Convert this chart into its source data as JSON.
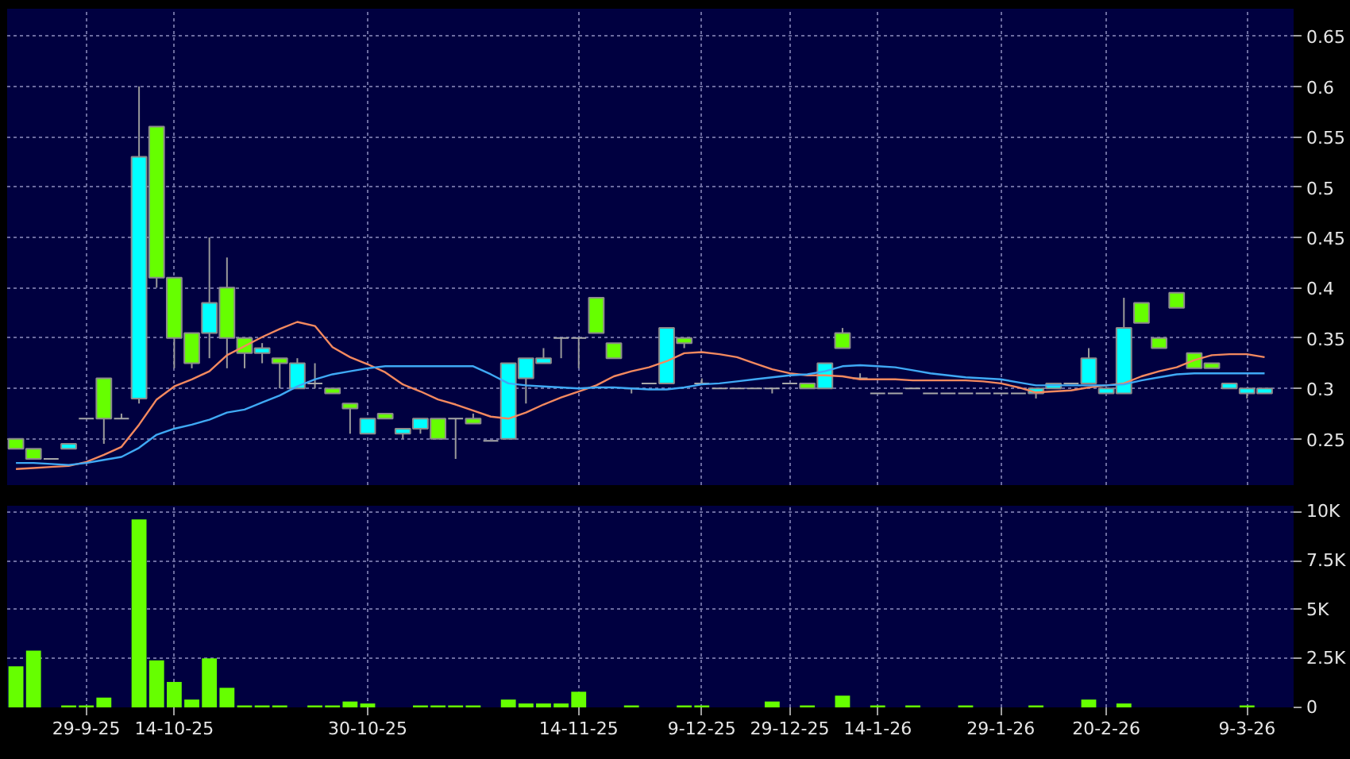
{
  "chart_data": [
    {
      "type": "candlestick",
      "categories": [
        null,
        null,
        null,
        null,
        null,
        null,
        null,
        null,
        null,
        null,
        null,
        null,
        null,
        null,
        null,
        null,
        null,
        null,
        null,
        null,
        null,
        null,
        null,
        null,
        null,
        null,
        null,
        null,
        null,
        null,
        null,
        null,
        null,
        null,
        null,
        null,
        null,
        null,
        null,
        null,
        null,
        null,
        null,
        null,
        null,
        null,
        null,
        null,
        null,
        null,
        null,
        null,
        null,
        null,
        null,
        null,
        null,
        null,
        null,
        null,
        null,
        null,
        null,
        null,
        null,
        null,
        null,
        null,
        null,
        null,
        null,
        null
      ],
      "ohlc": [
        [
          0.25,
          0.25,
          0.24,
          0.24
        ],
        [
          0.24,
          0.24,
          0.23,
          0.23
        ],
        [
          0.23,
          0.23,
          0.23,
          0.23
        ],
        [
          0.24,
          0.245,
          0.24,
          0.245
        ],
        [
          0.27,
          0.27,
          0.27,
          0.27
        ],
        [
          0.31,
          0.31,
          0.245,
          0.27
        ],
        [
          0.27,
          0.275,
          0.27,
          0.27
        ],
        [
          0.29,
          0.6,
          0.285,
          0.53
        ],
        [
          0.56,
          0.56,
          0.4,
          0.41
        ],
        [
          0.41,
          0.41,
          0.32,
          0.35
        ],
        [
          0.355,
          0.355,
          0.32,
          0.325
        ],
        [
          0.355,
          0.45,
          0.33,
          0.385
        ],
        [
          0.4,
          0.43,
          0.32,
          0.35
        ],
        [
          0.35,
          0.35,
          0.32,
          0.335
        ],
        [
          0.335,
          0.345,
          0.325,
          0.34
        ],
        [
          0.33,
          0.33,
          0.3,
          0.325
        ],
        [
          0.3,
          0.33,
          0.3,
          0.325
        ],
        [
          0.305,
          0.325,
          0.3,
          0.305
        ],
        [
          0.3,
          0.3,
          0.295,
          0.295
        ],
        [
          0.285,
          0.285,
          0.255,
          0.28
        ],
        [
          0.255,
          0.27,
          0.255,
          0.27
        ],
        [
          0.275,
          0.275,
          0.27,
          0.27
        ],
        [
          0.255,
          0.26,
          0.25,
          0.26
        ],
        [
          0.26,
          0.27,
          0.255,
          0.27
        ],
        [
          0.27,
          0.27,
          0.25,
          0.25
        ],
        [
          0.27,
          0.27,
          0.23,
          0.27
        ],
        [
          0.27,
          0.275,
          0.265,
          0.265
        ],
        [
          0.248,
          0.248,
          0.248,
          0.248
        ],
        [
          0.25,
          0.325,
          0.25,
          0.325
        ],
        [
          0.31,
          0.33,
          0.285,
          0.33
        ],
        [
          0.325,
          0.34,
          0.325,
          0.33
        ],
        [
          0.35,
          0.35,
          0.33,
          0.35
        ],
        [
          0.35,
          0.35,
          0.32,
          0.35
        ],
        [
          0.39,
          0.39,
          0.355,
          0.355
        ],
        [
          0.345,
          0.345,
          0.33,
          0.33
        ],
        [
          0.3,
          0.3,
          0.295,
          0.3
        ],
        [
          0.305,
          0.305,
          0.305,
          0.305
        ],
        [
          0.305,
          0.36,
          0.305,
          0.36
        ],
        [
          0.35,
          0.35,
          0.34,
          0.345
        ],
        [
          0.305,
          0.31,
          0.305,
          0.305
        ],
        [
          0.3,
          0.3,
          0.3,
          0.3
        ],
        [
          0.3,
          0.3,
          0.3,
          0.3
        ],
        [
          0.3,
          0.3,
          0.3,
          0.3
        ],
        [
          0.3,
          0.3,
          0.295,
          0.3
        ],
        [
          0.305,
          0.305,
          0.305,
          0.305
        ],
        [
          0.305,
          0.305,
          0.3,
          0.3
        ],
        [
          0.3,
          0.325,
          0.3,
          0.325
        ],
        [
          0.355,
          0.36,
          0.34,
          0.34
        ],
        [
          0.31,
          0.315,
          0.31,
          0.31
        ],
        [
          0.295,
          0.295,
          0.295,
          0.295
        ],
        [
          0.295,
          0.295,
          0.295,
          0.295
        ],
        [
          0.3,
          0.3,
          0.3,
          0.3
        ],
        [
          0.295,
          0.295,
          0.295,
          0.295
        ],
        [
          0.295,
          0.295,
          0.295,
          0.295
        ],
        [
          0.295,
          0.295,
          0.295,
          0.295
        ],
        [
          0.295,
          0.295,
          0.295,
          0.295
        ],
        [
          0.295,
          0.295,
          0.295,
          0.295
        ],
        [
          0.295,
          0.295,
          0.295,
          0.295
        ],
        [
          0.295,
          0.3,
          0.29,
          0.3
        ],
        [
          0.3,
          0.305,
          0.3,
          0.305
        ],
        [
          0.305,
          0.305,
          0.305,
          0.305
        ],
        [
          0.305,
          0.34,
          0.305,
          0.33
        ],
        [
          0.295,
          0.3,
          0.295,
          0.3
        ],
        [
          0.295,
          0.39,
          0.295,
          0.36
        ],
        [
          0.385,
          0.385,
          0.365,
          0.365
        ],
        [
          0.35,
          0.35,
          0.34,
          0.34
        ],
        [
          0.395,
          0.395,
          0.38,
          0.38
        ],
        [
          0.335,
          0.335,
          0.32,
          0.32
        ],
        [
          0.325,
          0.325,
          0.32,
          0.32
        ],
        [
          0.3,
          0.305,
          0.3,
          0.305
        ],
        [
          0.295,
          0.3,
          0.29,
          0.3
        ],
        [
          0.295,
          0.3,
          0.295,
          0.3
        ]
      ],
      "colors": [
        "#66ff00",
        "#66ff00",
        "#a8a8a8",
        "#00ffff",
        "#a8a8a8",
        "#66ff00",
        "#a8a8a8",
        "#00ffff",
        "#66ff00",
        "#66ff00",
        "#66ff00",
        "#00ffff",
        "#66ff00",
        "#66ff00",
        "#00ffff",
        "#66ff00",
        "#00ffff",
        "#a8a8a8",
        "#66ff00",
        "#66ff00",
        "#00ffff",
        "#66ff00",
        "#00ffff",
        "#00ffff",
        "#66ff00",
        "#a8a8a8",
        "#66ff00",
        "#a8a8a8",
        "#00ffff",
        "#00ffff",
        "#00ffff",
        "#a8a8a8",
        "#a8a8a8",
        "#66ff00",
        "#66ff00",
        "#a8a8a8",
        "#a8a8a8",
        "#00ffff",
        "#66ff00",
        "#a8a8a8",
        "#a8a8a8",
        "#a8a8a8",
        "#a8a8a8",
        "#a8a8a8",
        "#a8a8a8",
        "#66ff00",
        "#00ffff",
        "#66ff00",
        "#a8a8a8",
        "#a8a8a8",
        "#a8a8a8",
        "#a8a8a8",
        "#a8a8a8",
        "#a8a8a8",
        "#a8a8a8",
        "#a8a8a8",
        "#a8a8a8",
        "#a8a8a8",
        "#00ffff",
        "#00ffff",
        "#a8a8a8",
        "#00ffff",
        "#00ffff",
        "#00ffff",
        "#66ff00",
        "#66ff00",
        "#66ff00",
        "#66ff00",
        "#66ff00",
        "#00ffff",
        "#00ffff",
        "#00ffff"
      ],
      "series": [
        {
          "type": "line",
          "color": "#f4895f",
          "values": [
            0.22,
            0.221,
            0.222,
            0.223,
            0.227,
            0.234,
            0.242,
            0.264,
            0.289,
            0.302,
            0.309,
            0.317,
            0.333,
            0.342,
            0.351,
            0.359,
            0.366,
            0.362,
            0.341,
            0.331,
            0.324,
            0.316,
            0.304,
            0.297,
            0.289,
            0.284,
            0.278,
            0.272,
            0.27,
            0.276,
            0.284,
            0.291,
            0.297,
            0.303,
            0.312,
            0.317,
            0.321,
            0.327,
            0.335,
            0.336,
            0.334,
            0.331,
            0.325,
            0.319,
            0.315,
            0.313,
            0.313,
            0.312,
            0.309,
            0.309,
            0.309,
            0.308,
            0.308,
            0.308,
            0.308,
            0.307,
            0.305,
            0.301,
            0.296,
            0.297,
            0.298,
            0.301,
            0.303,
            0.305,
            0.312,
            0.317,
            0.321,
            0.328,
            0.333,
            0.334,
            0.334,
            0.331
          ]
        },
        {
          "type": "line",
          "color": "#3fa9f5",
          "values": [
            0.226,
            0.226,
            0.225,
            0.224,
            0.226,
            0.229,
            0.232,
            0.241,
            0.254,
            0.26,
            0.264,
            0.269,
            0.276,
            0.279,
            0.286,
            0.293,
            0.302,
            0.309,
            0.314,
            0.317,
            0.32,
            0.322,
            0.322,
            0.322,
            0.322,
            0.322,
            0.322,
            0.314,
            0.305,
            0.303,
            0.302,
            0.301,
            0.3,
            0.301,
            0.301,
            0.3,
            0.299,
            0.299,
            0.301,
            0.304,
            0.305,
            0.307,
            0.309,
            0.311,
            0.313,
            0.314,
            0.317,
            0.322,
            0.323,
            0.322,
            0.321,
            0.318,
            0.315,
            0.313,
            0.311,
            0.31,
            0.309,
            0.306,
            0.303,
            0.303,
            0.303,
            0.303,
            0.303,
            0.304,
            0.308,
            0.311,
            0.314,
            0.315,
            0.315,
            0.315,
            0.315,
            0.315
          ]
        }
      ],
      "ylim": [
        0.204,
        0.677
      ],
      "yticks": [
        0.25,
        0.3,
        0.35,
        0.4,
        0.45,
        0.5,
        0.55,
        0.6,
        0.65
      ],
      "grid": true,
      "tick_labels": "y"
    },
    {
      "type": "bar",
      "categories": [
        null,
        null,
        null,
        null,
        "29-9-25",
        null,
        null,
        null,
        null,
        "14-10-25",
        null,
        null,
        null,
        null,
        null,
        null,
        null,
        null,
        null,
        null,
        "30-10-25",
        null,
        null,
        null,
        null,
        null,
        null,
        null,
        null,
        null,
        null,
        null,
        "14-11-25",
        null,
        null,
        null,
        null,
        null,
        null,
        "9-12-25",
        null,
        null,
        null,
        null,
        "29-12-25",
        null,
        null,
        null,
        null,
        "14-1-26",
        null,
        null,
        null,
        null,
        null,
        null,
        "29-1-26",
        null,
        null,
        null,
        null,
        null,
        "20-2-26",
        null,
        null,
        null,
        null,
        null,
        null,
        null,
        "9-3-26",
        null
      ],
      "values": [
        2100,
        2900,
        0,
        100,
        100,
        500,
        0,
        9600,
        2400,
        1300,
        400,
        2500,
        1000,
        100,
        100,
        100,
        0,
        100,
        100,
        300,
        200,
        0,
        0,
        100,
        100,
        100,
        100,
        0,
        400,
        200,
        200,
        200,
        800,
        0,
        0,
        100,
        0,
        0,
        100,
        100,
        0,
        0,
        0,
        300,
        0,
        100,
        0,
        600,
        0,
        100,
        0,
        100,
        0,
        0,
        100,
        0,
        0,
        0,
        100,
        0,
        0,
        400,
        0,
        200,
        0,
        0,
        0,
        0,
        0,
        0,
        100,
        0
      ],
      "color": "#66ff00",
      "ylim": [
        0,
        10300
      ],
      "yticks": [
        0,
        {
          "value": 2500,
          "label": "2.5K"
        },
        {
          "value": 5000,
          "label": "5K"
        },
        {
          "value": 7500,
          "label": "7.5K"
        },
        {
          "value": 10000,
          "label": "10K"
        }
      ],
      "grid": true
    }
  ]
}
